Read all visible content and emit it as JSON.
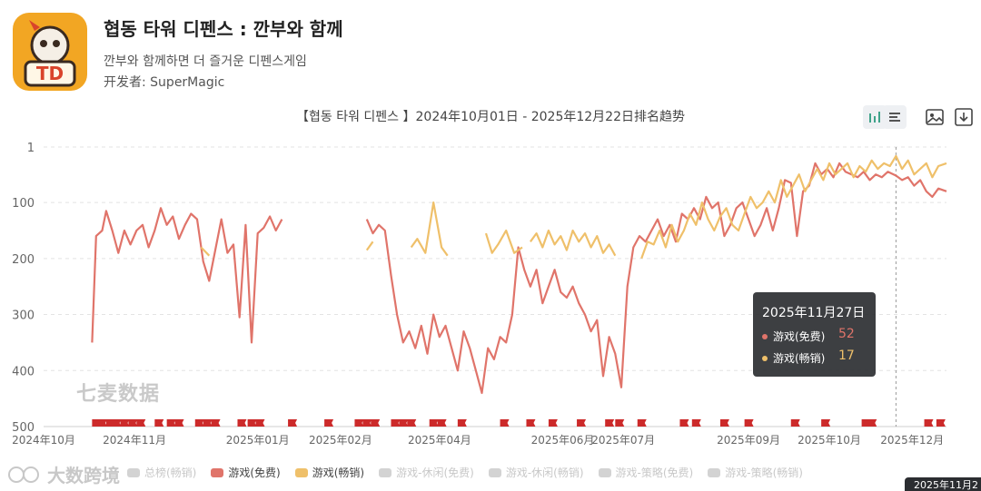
{
  "app": {
    "icon_text": "TD",
    "title": "협동 타워 디펜스 : 깐부와 함께",
    "subtitle": "깐부와 함께하면 더 즐거운 디펜스게임",
    "developer": "开发者: SuperMagic"
  },
  "toolbar": {
    "icons": [
      "bar-line-toggle-icon",
      "list-icon",
      "image-icon",
      "download-icon"
    ]
  },
  "watermark": "七麦数据",
  "brand": "大数跨境",
  "tooltip": {
    "date": "2025年11月27日",
    "rows": [
      {
        "label": "游戏(免费)",
        "value": "52",
        "color": "#e0746a"
      },
      {
        "label": "游戏(畅销)",
        "value": "17",
        "color": "#efc06a"
      }
    ]
  },
  "corner_tag": "2025年11月2",
  "chart_data": {
    "type": "line",
    "title": "【협동 타워 디펜스 】2024年10月01日 - 2025年12月22日排名趋势",
    "y_inverted": true,
    "ylim": [
      1,
      500
    ],
    "y_ticks": [
      "1",
      "100",
      "200",
      "300",
      "400",
      "500"
    ],
    "x_ticks": [
      "2024年10月",
      "2024年11月",
      "2025年01月",
      "2025年02月",
      "2025年04月",
      "2025年06月",
      "2025年07月",
      "2025年09月",
      "2025年10月",
      "2025年12月"
    ],
    "series": [
      {
        "name": "游戏(免费)",
        "color": "#e0746a",
        "segments": [
          [
            [
              "2024-10-25",
              350
            ],
            [
              "2024-10-27",
              160
            ],
            [
              "2024-10-30",
              150
            ],
            [
              "2024-11-01",
              115
            ],
            [
              "2024-11-04",
              150
            ],
            [
              "2024-11-07",
              190
            ],
            [
              "2024-11-10",
              150
            ],
            [
              "2024-11-13",
              175
            ],
            [
              "2024-11-16",
              150
            ],
            [
              "2024-11-19",
              140
            ],
            [
              "2024-11-22",
              180
            ],
            [
              "2024-11-25",
              150
            ],
            [
              "2024-11-28",
              110
            ],
            [
              "2024-12-01",
              140
            ],
            [
              "2024-12-04",
              125
            ],
            [
              "2024-12-07",
              165
            ],
            [
              "2024-12-10",
              140
            ],
            [
              "2024-12-13",
              120
            ],
            [
              "2024-12-16",
              130
            ],
            [
              "2024-12-19",
              205
            ],
            [
              "2024-12-22",
              240
            ],
            [
              "2024-12-25",
              185
            ],
            [
              "2024-12-28",
              130
            ],
            [
              "2024-12-31",
              190
            ],
            [
              "2025-01-03",
              175
            ],
            [
              "2025-01-06",
              305
            ],
            [
              "2025-01-09",
              140
            ],
            [
              "2025-01-12",
              350
            ],
            [
              "2025-01-15",
              155
            ],
            [
              "2025-01-18",
              145
            ],
            [
              "2025-01-21",
              125
            ],
            [
              "2025-01-24",
              150
            ],
            [
              "2025-01-27",
              130
            ]
          ],
          [
            [
              "2025-03-10",
              130
            ],
            [
              "2025-03-13",
              155
            ],
            [
              "2025-03-16",
              140
            ],
            [
              "2025-03-19",
              150
            ],
            [
              "2025-03-22",
              230
            ],
            [
              "2025-03-25",
              300
            ],
            [
              "2025-03-28",
              350
            ],
            [
              "2025-03-31",
              330
            ],
            [
              "2025-04-03",
              360
            ],
            [
              "2025-04-06",
              320
            ],
            [
              "2025-04-09",
              370
            ],
            [
              "2025-04-12",
              300
            ],
            [
              "2025-04-15",
              340
            ],
            [
              "2025-04-18",
              320
            ],
            [
              "2025-04-21",
              360
            ],
            [
              "2025-04-24",
              400
            ],
            [
              "2025-04-27",
              330
            ],
            [
              "2025-04-30",
              360
            ],
            [
              "2025-05-03",
              400
            ],
            [
              "2025-05-06",
              440
            ],
            [
              "2025-05-09",
              360
            ],
            [
              "2025-05-12",
              380
            ],
            [
              "2025-05-15",
              340
            ],
            [
              "2025-05-18",
              350
            ],
            [
              "2025-05-21",
              300
            ],
            [
              "2025-05-24",
              180
            ],
            [
              "2025-05-27",
              220
            ],
            [
              "2025-05-30",
              250
            ],
            [
              "2025-06-02",
              220
            ],
            [
              "2025-06-05",
              280
            ],
            [
              "2025-06-08",
              250
            ],
            [
              "2025-06-11",
              220
            ],
            [
              "2025-06-14",
              260
            ],
            [
              "2025-06-17",
              270
            ],
            [
              "2025-06-20",
              250
            ],
            [
              "2025-06-23",
              280
            ],
            [
              "2025-06-26",
              300
            ],
            [
              "2025-06-29",
              330
            ],
            [
              "2025-07-02",
              310
            ],
            [
              "2025-07-05",
              410
            ],
            [
              "2025-07-08",
              340
            ],
            [
              "2025-07-11",
              370
            ],
            [
              "2025-07-14",
              430
            ],
            [
              "2025-07-17",
              250
            ],
            [
              "2025-07-20",
              180
            ],
            [
              "2025-07-23",
              160
            ],
            [
              "2025-07-26",
              170
            ],
            [
              "2025-07-29",
              150
            ],
            [
              "2025-08-01",
              130
            ],
            [
              "2025-08-04",
              160
            ],
            [
              "2025-08-07",
              140
            ],
            [
              "2025-08-10",
              170
            ],
            [
              "2025-08-13",
              120
            ],
            [
              "2025-08-16",
              130
            ],
            [
              "2025-08-19",
              110
            ],
            [
              "2025-08-22",
              130
            ],
            [
              "2025-08-25",
              90
            ],
            [
              "2025-08-28",
              110
            ],
            [
              "2025-08-31",
              100
            ],
            [
              "2025-09-03",
              160
            ],
            [
              "2025-09-06",
              140
            ],
            [
              "2025-09-09",
              110
            ],
            [
              "2025-09-12",
              100
            ],
            [
              "2025-09-15",
              130
            ],
            [
              "2025-09-18",
              160
            ],
            [
              "2025-09-21",
              140
            ],
            [
              "2025-09-24",
              110
            ],
            [
              "2025-09-27",
              150
            ],
            [
              "2025-09-30",
              110
            ],
            [
              "2025-10-03",
              60
            ],
            [
              "2025-10-06",
              65
            ],
            [
              "2025-10-09",
              160
            ],
            [
              "2025-10-12",
              80
            ],
            [
              "2025-10-15",
              70
            ],
            [
              "2025-10-18",
              30
            ],
            [
              "2025-10-21",
              50
            ],
            [
              "2025-10-24",
              40
            ],
            [
              "2025-10-27",
              55
            ],
            [
              "2025-10-30",
              30
            ],
            [
              "2025-11-02",
              45
            ],
            [
              "2025-11-05",
              50
            ],
            [
              "2025-11-08",
              55
            ],
            [
              "2025-11-11",
              45
            ],
            [
              "2025-11-14",
              60
            ],
            [
              "2025-11-17",
              50
            ],
            [
              "2025-11-20",
              55
            ],
            [
              "2025-11-23",
              45
            ],
            [
              "2025-11-27",
              52
            ],
            [
              "2025-11-30",
              60
            ],
            [
              "2025-12-03",
              55
            ],
            [
              "2025-12-06",
              70
            ],
            [
              "2025-12-09",
              60
            ],
            [
              "2025-12-12",
              80
            ],
            [
              "2025-12-15",
              90
            ],
            [
              "2025-12-18",
              75
            ],
            [
              "2025-12-22",
              80
            ]
          ]
        ]
      },
      {
        "name": "游戏(畅销)",
        "color": "#efc06a",
        "segments": [
          [
            [
              "2024-12-18",
              180
            ],
            [
              "2024-12-22",
              195
            ]
          ],
          [
            [
              "2025-03-10",
              185
            ],
            [
              "2025-03-13",
              170
            ]
          ],
          [
            [
              "2025-04-01",
              180
            ],
            [
              "2025-04-04",
              165
            ],
            [
              "2025-04-08",
              190
            ],
            [
              "2025-04-12",
              100
            ],
            [
              "2025-04-16",
              180
            ],
            [
              "2025-04-19",
              195
            ]
          ],
          [
            [
              "2025-05-08",
              155
            ],
            [
              "2025-05-11",
              190
            ],
            [
              "2025-05-14",
              175
            ],
            [
              "2025-05-18",
              150
            ],
            [
              "2025-05-22",
              190
            ],
            [
              "2025-05-26",
              180
            ]
          ],
          [
            [
              "2025-05-30",
              170
            ],
            [
              "2025-06-02",
              155
            ],
            [
              "2025-06-05",
              180
            ],
            [
              "2025-06-08",
              150
            ],
            [
              "2025-06-11",
              175
            ],
            [
              "2025-06-14",
              160
            ],
            [
              "2025-06-17",
              185
            ],
            [
              "2025-06-20",
              150
            ],
            [
              "2025-06-23",
              170
            ],
            [
              "2025-06-26",
              155
            ],
            [
              "2025-06-29",
              180
            ],
            [
              "2025-07-02",
              160
            ],
            [
              "2025-07-05",
              190
            ],
            [
              "2025-07-08",
              175
            ],
            [
              "2025-07-11",
              195
            ]
          ],
          [
            [
              "2025-07-24",
              200
            ],
            [
              "2025-07-27",
              170
            ],
            [
              "2025-07-30",
              175
            ],
            [
              "2025-08-02",
              150
            ],
            [
              "2025-08-05",
              180
            ],
            [
              "2025-08-08",
              140
            ],
            [
              "2025-08-11",
              170
            ],
            [
              "2025-08-14",
              150
            ],
            [
              "2025-08-17",
              120
            ],
            [
              "2025-08-20",
              140
            ],
            [
              "2025-08-23",
              100
            ],
            [
              "2025-08-26",
              130
            ],
            [
              "2025-08-29",
              150
            ],
            [
              "2025-09-01",
              125
            ],
            [
              "2025-09-04",
              110
            ],
            [
              "2025-09-07",
              140
            ],
            [
              "2025-09-10",
              150
            ],
            [
              "2025-09-13",
              120
            ],
            [
              "2025-09-16",
              90
            ],
            [
              "2025-09-19",
              110
            ],
            [
              "2025-09-22",
              100
            ],
            [
              "2025-09-25",
              80
            ],
            [
              "2025-09-28",
              100
            ],
            [
              "2025-10-01",
              60
            ],
            [
              "2025-10-04",
              90
            ],
            [
              "2025-10-07",
              70
            ],
            [
              "2025-10-10",
              50
            ],
            [
              "2025-10-13",
              80
            ],
            [
              "2025-10-16",
              60
            ],
            [
              "2025-10-19",
              40
            ],
            [
              "2025-10-22",
              60
            ],
            [
              "2025-10-25",
              30
            ],
            [
              "2025-10-28",
              50
            ],
            [
              "2025-10-31",
              40
            ],
            [
              "2025-11-03",
              30
            ],
            [
              "2025-11-06",
              55
            ],
            [
              "2025-11-09",
              35
            ],
            [
              "2025-11-12",
              45
            ],
            [
              "2025-11-15",
              25
            ],
            [
              "2025-11-18",
              40
            ],
            [
              "2025-11-21",
              30
            ],
            [
              "2025-11-24",
              35
            ],
            [
              "2025-11-27",
              17
            ],
            [
              "2025-11-30",
              40
            ],
            [
              "2025-12-03",
              25
            ],
            [
              "2025-12-06",
              50
            ],
            [
              "2025-12-09",
              40
            ],
            [
              "2025-12-12",
              30
            ],
            [
              "2025-12-15",
              55
            ],
            [
              "2025-12-18",
              35
            ],
            [
              "2025-12-22",
              30
            ]
          ]
        ]
      }
    ],
    "event_markers": [
      "2024-10-25",
      "2024-10-28",
      "2024-11-01",
      "2024-11-04",
      "2024-11-08",
      "2024-11-12",
      "2024-11-16",
      "2024-11-25",
      "2024-12-01",
      "2024-12-05",
      "2024-12-15",
      "2024-12-19",
      "2024-12-23",
      "2025-01-05",
      "2025-01-10",
      "2025-01-14",
      "2025-01-30",
      "2025-02-17",
      "2025-03-04",
      "2025-03-08",
      "2025-03-12",
      "2025-03-22",
      "2025-03-26",
      "2025-03-30",
      "2025-04-10",
      "2025-04-14",
      "2025-04-24",
      "2025-05-15",
      "2025-05-28",
      "2025-06-08",
      "2025-06-22",
      "2025-07-06",
      "2025-07-11",
      "2025-07-22",
      "2025-08-12",
      "2025-08-18",
      "2025-09-01",
      "2025-09-13",
      "2025-10-06",
      "2025-10-21",
      "2025-11-10",
      "2025-11-13",
      "2025-12-11",
      "2025-12-17"
    ],
    "crosshair_date": "2025-11-27",
    "legend": [
      {
        "label": "总榜(畅销)",
        "color": "#d3d3d3"
      },
      {
        "label": "游戏(免费)",
        "color": "#e0746a"
      },
      {
        "label": "游戏(畅销)",
        "color": "#efc06a"
      },
      {
        "label": "游戏-休闲(免费)",
        "color": "#d3d3d3"
      },
      {
        "label": "游戏-休闲(畅销)",
        "color": "#d3d3d3"
      },
      {
        "label": "游戏-策略(免费)",
        "color": "#d3d3d3"
      },
      {
        "label": "游戏-策略(畅销)",
        "color": "#d3d3d3"
      }
    ]
  }
}
